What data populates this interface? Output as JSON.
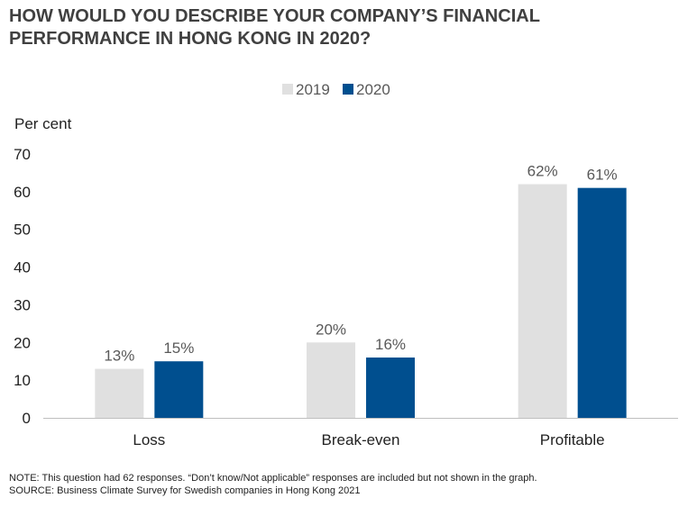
{
  "title_lines": [
    "HOW WOULD YOU DESCRIBE YOUR COMPANY’S FINANCIAL",
    "PERFORMANCE IN HONG KONG IN 2020?"
  ],
  "note": "NOTE: This question had 62 responses. “Don’t know/Not applicable” responses are included but not shown in the graph.",
  "source": "SOURCE: Business Climate Survey for Swedish companies in Hong Kong 2021",
  "chart_data": {
    "type": "bar",
    "title": "HOW WOULD YOU DESCRIBE YOUR COMPANY’S FINANCIAL PERFORMANCE IN HONG KONG IN 2020?",
    "ylabel": "Per cent",
    "xlabel": "",
    "ylim": [
      0,
      70
    ],
    "yticks": [
      0,
      10,
      20,
      30,
      40,
      50,
      60,
      70
    ],
    "ytick_labels": [
      "0",
      "10",
      "20",
      "30",
      "40",
      "50",
      "60",
      "70"
    ],
    "categories": [
      "Loss",
      "Break-even",
      "Profitable"
    ],
    "series": [
      {
        "name": "2019",
        "color": "#e0e0e0",
        "values": [
          13,
          20,
          62
        ],
        "labels": [
          "13%",
          "20%",
          "62%"
        ]
      },
      {
        "name": "2020",
        "color": "#004f8f",
        "values": [
          15,
          16,
          61
        ],
        "labels": [
          "15%",
          "16%",
          "61%"
        ]
      }
    ],
    "legend": "top-center",
    "grid": false
  }
}
